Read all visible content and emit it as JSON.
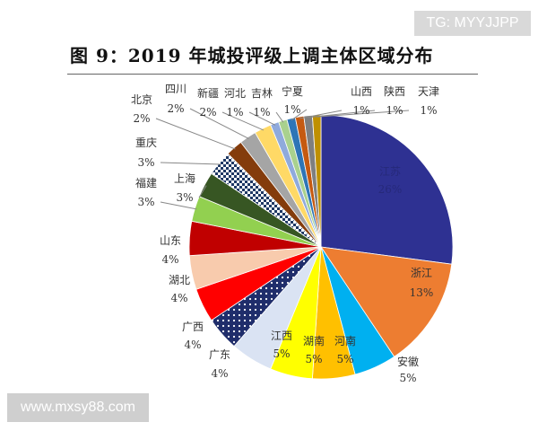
{
  "watermarks": {
    "top_right": "TG: MYYJJPP",
    "bottom_left": "www.mxsy88.com"
  },
  "chart_data": {
    "type": "pie",
    "title": "图 9：2019 年城投评级上调主体区域分布",
    "start": "12 o'clock, clockwise",
    "slices": [
      {
        "label": "江苏",
        "value": 26,
        "text": "26%",
        "color": "#2E3192"
      },
      {
        "label": "浙江",
        "value": 13,
        "text": "13%",
        "color": "#ED7D31"
      },
      {
        "label": "安徽",
        "value": 5,
        "text": "5%",
        "color": "#00B0F0"
      },
      {
        "label": "河南",
        "value": 5,
        "text": "5%",
        "color": "#FFC000"
      },
      {
        "label": "湖南",
        "value": 5,
        "text": "5%",
        "color": "#FFFF00"
      },
      {
        "label": "江西",
        "value": 5,
        "text": "5%",
        "color": "#DAE3F3"
      },
      {
        "label": "广东",
        "value": 4,
        "text": "4%",
        "color": "pattern-dots-navy"
      },
      {
        "label": "广西",
        "value": 4,
        "text": "4%",
        "color": "#FF0000"
      },
      {
        "label": "湖北",
        "value": 4,
        "text": "4%",
        "color": "#F8CBAD"
      },
      {
        "label": "山东",
        "value": 4,
        "text": "4%",
        "color": "#C00000"
      },
      {
        "label": "福建",
        "value": 3,
        "text": "3%",
        "color": "#92D050"
      },
      {
        "label": "上海",
        "value": 3,
        "text": "3%",
        "color": "#375623"
      },
      {
        "label": "重庆",
        "value": 3,
        "text": "3%",
        "color": "pattern-check-navy"
      },
      {
        "label": "北京",
        "value": 2,
        "text": "2%",
        "color": "#843C0C"
      },
      {
        "label": "四川",
        "value": 2,
        "text": "2%",
        "color": "#A5A5A5"
      },
      {
        "label": "新疆",
        "value": 2,
        "text": "2%",
        "color": "#FFD966"
      },
      {
        "label": "河北",
        "value": 1,
        "text": "1%",
        "color": "#8FAADC"
      },
      {
        "label": "吉林",
        "value": 1,
        "text": "1%",
        "color": "#A9D18E"
      },
      {
        "label": "宁夏",
        "value": 1,
        "text": "1%",
        "color": "#2E75B6"
      },
      {
        "label": "山西",
        "value": 1,
        "text": "1%",
        "color": "#C55A11"
      },
      {
        "label": "陕西",
        "value": 1,
        "text": "1%",
        "color": "#7F7F7F"
      },
      {
        "label": "天津",
        "value": 1,
        "text": "1%",
        "color": "#BF9000"
      }
    ]
  }
}
